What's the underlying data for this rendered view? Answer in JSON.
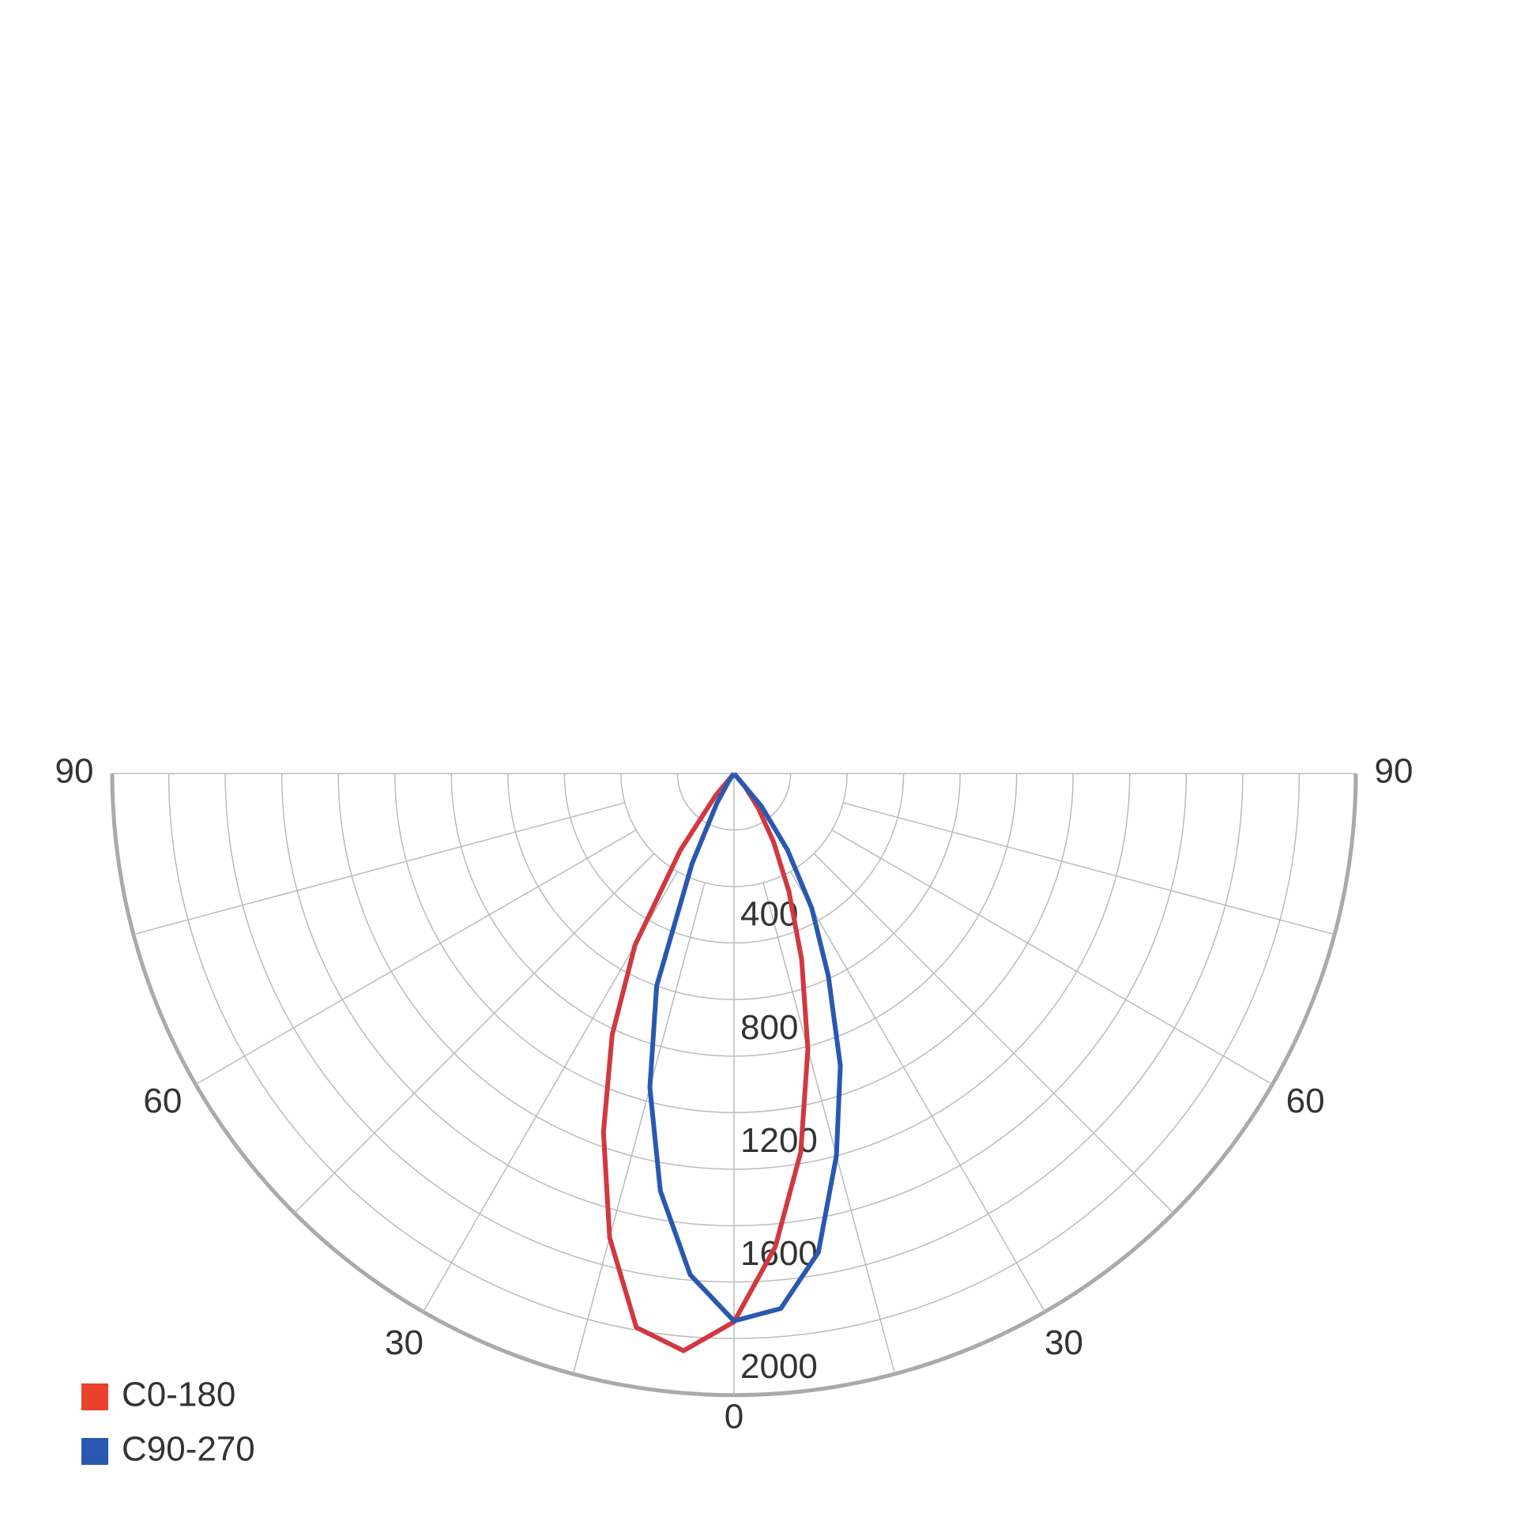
{
  "chart_data": {
    "type": "polar",
    "angles": [
      -45,
      -40,
      -35,
      -30,
      -25,
      -20,
      -15,
      -10,
      -5,
      0,
      5,
      10,
      15,
      20,
      25,
      30,
      35,
      40,
      45
    ],
    "series": [
      {
        "name": "C0-180",
        "color": "#d0393f",
        "legend_color": "#e8412c",
        "values": [
          0,
          100,
          330,
          700,
          1020,
          1350,
          1700,
          1990,
          2050,
          1940,
          1680,
          1360,
          1010,
          700,
          460,
          280,
          150,
          60,
          0
        ]
      },
      {
        "name": "C90-270",
        "color": "#2a58b0",
        "legend_color": "#2a58b0",
        "values": [
          0,
          0,
          30,
          120,
          350,
          800,
          1150,
          1500,
          1780,
          1937,
          1900,
          1720,
          1400,
          1100,
          790,
          550,
          330,
          150,
          0
        ]
      }
    ],
    "rlim": [
      0,
      2200
    ],
    "rticks": [
      400,
      800,
      1200,
      1600,
      2000
    ],
    "rgrid": [
      200,
      400,
      600,
      800,
      1000,
      1200,
      1400,
      1600,
      1800,
      2000,
      2200
    ],
    "angle_grid": [
      -90,
      -75,
      -60,
      -45,
      -30,
      -15,
      0,
      15,
      30,
      45,
      60,
      75,
      90
    ],
    "angle_ticks": [
      {
        "value": -90,
        "label": "90"
      },
      {
        "value": -60,
        "label": "60"
      },
      {
        "value": -30,
        "label": "30"
      },
      0,
      30,
      60,
      90
    ],
    "legend": "lower-left",
    "grid": true
  }
}
